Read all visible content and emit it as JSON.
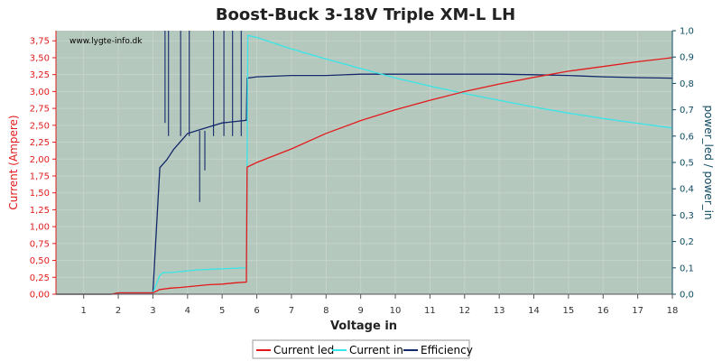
{
  "colors": {
    "plot_bg": "#b4c8bd",
    "grid": "#c6d3cb",
    "left_axis": "#e11b1b",
    "right_axis": "#0e4a63",
    "current_led": "#e31a1c",
    "current_in": "#38e5e8",
    "efficiency": "#14286c"
  },
  "chart_data": {
    "type": "line",
    "title": "Boost-Buck 3-18V Triple XM-L LH",
    "watermark": "www.lygte-info.dk",
    "xlabel": "Voltage in",
    "ylabel_left": "Current (Ampere)",
    "ylabel_right": "power_led / power_in",
    "xlim": [
      0.2,
      18
    ],
    "ylim_left": [
      0,
      3.9
    ],
    "ylim_right": [
      0,
      1.0
    ],
    "x_ticks": [
      "1",
      "2",
      "3",
      "4",
      "5",
      "6",
      "7",
      "8",
      "9",
      "10",
      "11",
      "12",
      "13",
      "14",
      "15",
      "16",
      "17",
      "18"
    ],
    "y_left_ticks": [
      "0,00",
      "0,25",
      "0,50",
      "0,75",
      "1,00",
      "1,25",
      "1,50",
      "1,75",
      "2,00",
      "2,25",
      "2,50",
      "2,75",
      "3,00",
      "3,25",
      "3,50",
      "3,75"
    ],
    "y_right_ticks": [
      "0,0",
      "0,1",
      "0,2",
      "0,3",
      "0,4",
      "0,5",
      "0,6",
      "0,7",
      "0,8",
      "0,9",
      "1,0"
    ],
    "grid": true,
    "legend_position": "bottom",
    "series": [
      {
        "name": "Current led",
        "axis": "left",
        "points": [
          [
            0.2,
            0
          ],
          [
            1.8,
            0
          ],
          [
            2.0,
            0.02
          ],
          [
            2.5,
            0.02
          ],
          [
            3.0,
            0.02
          ],
          [
            3.2,
            0.07
          ],
          [
            3.5,
            0.09
          ],
          [
            3.8,
            0.1
          ],
          [
            4.2,
            0.12
          ],
          [
            4.6,
            0.14
          ],
          [
            5.0,
            0.15
          ],
          [
            5.4,
            0.17
          ],
          [
            5.7,
            0.18
          ],
          [
            5.72,
            1.88
          ],
          [
            6.0,
            1.95
          ],
          [
            7,
            2.15
          ],
          [
            8,
            2.38
          ],
          [
            9,
            2.57
          ],
          [
            10,
            2.73
          ],
          [
            11,
            2.87
          ],
          [
            12,
            3.0
          ],
          [
            13,
            3.11
          ],
          [
            14,
            3.21
          ],
          [
            15,
            3.3
          ],
          [
            16,
            3.37
          ],
          [
            17,
            3.44
          ],
          [
            18,
            3.5
          ]
        ]
      },
      {
        "name": "Current in",
        "axis": "left",
        "points": [
          [
            0.2,
            0
          ],
          [
            1.8,
            0
          ],
          [
            2.0,
            0.02
          ],
          [
            3.0,
            0.02
          ],
          [
            3.2,
            0.28
          ],
          [
            3.3,
            0.32
          ],
          [
            3.5,
            0.32
          ],
          [
            3.9,
            0.34
          ],
          [
            4.3,
            0.36
          ],
          [
            4.7,
            0.37
          ],
          [
            5.2,
            0.38
          ],
          [
            5.7,
            0.39
          ],
          [
            5.72,
            1.92
          ],
          [
            5.74,
            3.83
          ],
          [
            6,
            3.8
          ],
          [
            7,
            3.63
          ],
          [
            8,
            3.48
          ],
          [
            9,
            3.34
          ],
          [
            10,
            3.2
          ],
          [
            11,
            3.08
          ],
          [
            12,
            2.97
          ],
          [
            13,
            2.87
          ],
          [
            14,
            2.77
          ],
          [
            15,
            2.68
          ],
          [
            16,
            2.6
          ],
          [
            17,
            2.53
          ],
          [
            18,
            2.46
          ]
        ]
      },
      {
        "name": "Efficiency",
        "axis": "right",
        "points": [
          [
            0.2,
            0
          ],
          [
            1.8,
            0
          ],
          [
            2.0,
            0.005
          ],
          [
            3.0,
            0.005
          ],
          [
            3.2,
            0.48
          ],
          [
            3.4,
            0.51
          ],
          [
            3.6,
            0.55
          ],
          [
            4.0,
            0.61
          ],
          [
            4.5,
            0.63
          ],
          [
            5.0,
            0.65
          ],
          [
            5.7,
            0.66
          ],
          [
            5.72,
            0.82
          ],
          [
            6,
            0.825
          ],
          [
            7,
            0.83
          ],
          [
            8,
            0.83
          ],
          [
            9,
            0.835
          ],
          [
            10,
            0.835
          ],
          [
            11,
            0.835
          ],
          [
            12,
            0.835
          ],
          [
            13,
            0.835
          ],
          [
            14,
            0.833
          ],
          [
            15,
            0.83
          ],
          [
            16,
            0.825
          ],
          [
            17,
            0.822
          ],
          [
            18,
            0.82
          ]
        ]
      }
    ]
  }
}
